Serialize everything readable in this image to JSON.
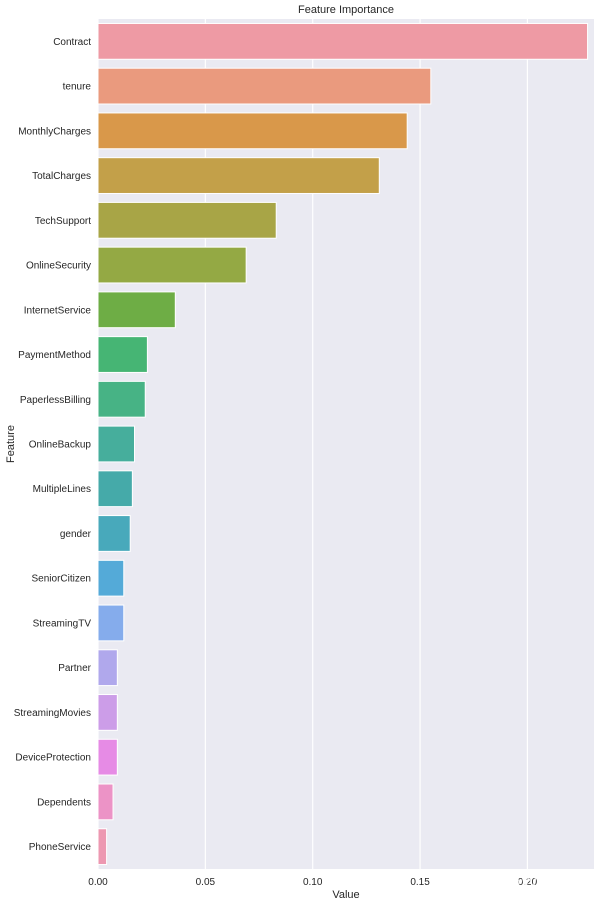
{
  "chart_data": {
    "type": "bar",
    "orientation": "horizontal",
    "title": "Feature Importance",
    "xlabel": "Value",
    "ylabel": "Feature",
    "categories": [
      "Contract",
      "tenure",
      "MonthlyCharges",
      "TotalCharges",
      "TechSupport",
      "OnlineSecurity",
      "InternetService",
      "PaymentMethod",
      "PaperlessBilling",
      "OnlineBackup",
      "MultipleLines",
      "gender",
      "SeniorCitizen",
      "StreamingTV",
      "Partner",
      "StreamingMovies",
      "DeviceProtection",
      "Dependents",
      "PhoneService"
    ],
    "values": [
      0.228,
      0.155,
      0.144,
      0.131,
      0.083,
      0.069,
      0.036,
      0.023,
      0.022,
      0.017,
      0.016,
      0.015,
      0.012,
      0.012,
      0.009,
      0.009,
      0.009,
      0.007,
      0.004
    ],
    "colors": [
      "#ee9aa4",
      "#ea9a7e",
      "#d9984a",
      "#c3a049",
      "#a8a546",
      "#94a944",
      "#6ead45",
      "#46b574",
      "#47b385",
      "#46ae9c",
      "#45aaa9",
      "#48a9bb",
      "#54aad8",
      "#85acec",
      "#b0a8ec",
      "#cc9de8",
      "#e68be5",
      "#ec93c6",
      "#ed98b1"
    ],
    "xticks": [
      0.0,
      0.05,
      0.1,
      0.15,
      0.2
    ],
    "xtick_labels": [
      "0.00",
      "0.05",
      "0.10",
      "0.15",
      "0.20"
    ],
    "xlim": [
      0.0,
      0.231
    ],
    "grid": true,
    "background": "#eaeaf2"
  },
  "watermark": "知乎 @Wonder"
}
